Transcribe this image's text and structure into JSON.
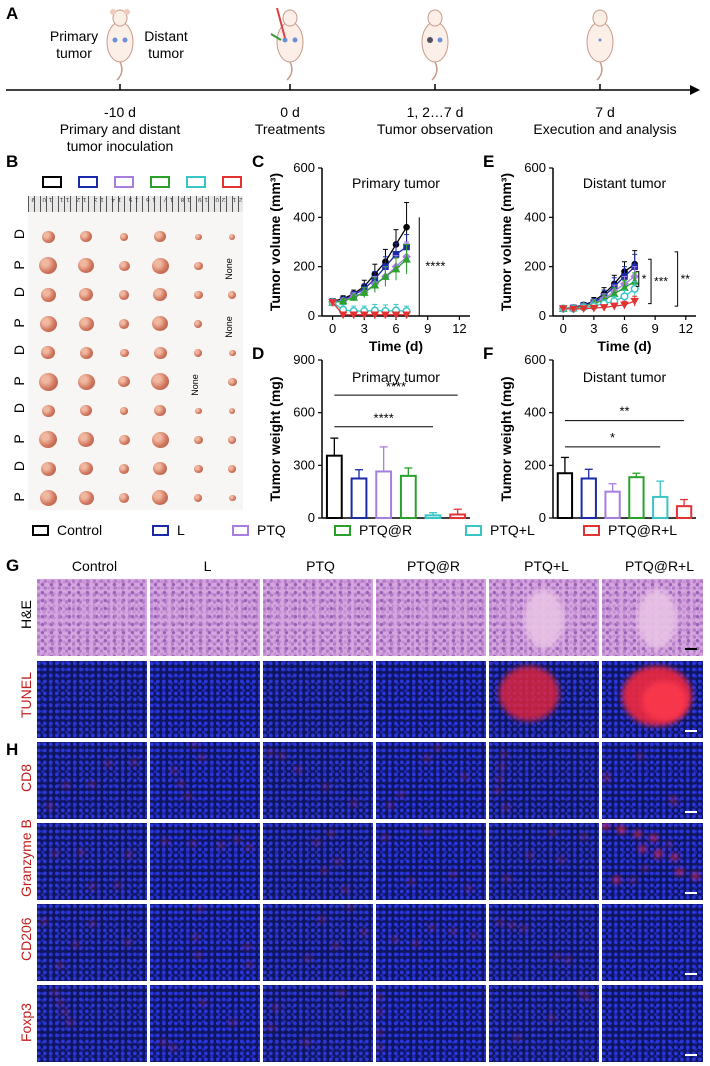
{
  "panels": {
    "A": "A",
    "B": "B",
    "C": "C",
    "D": "D",
    "E": "E",
    "F": "F",
    "G": "G",
    "H": "H"
  },
  "timeline": {
    "top_labels": {
      "primary": "Primary\ntumor",
      "distant": "Distant\ntumor"
    },
    "points": [
      {
        "day": "-10 d",
        "desc": "Primary and distant\ntumor inoculation"
      },
      {
        "day": "0 d",
        "desc": "Treatments"
      },
      {
        "day": "1, 2…7 d",
        "desc": "Tumor observation"
      },
      {
        "day": "7 d",
        "desc": "Execution and analysis"
      }
    ]
  },
  "photo": {
    "row_labels": [
      "D",
      "P",
      "D",
      "P",
      "D",
      "P",
      "D",
      "P",
      "D",
      "P"
    ],
    "none_label": "None",
    "ruler_numbers": "21 20 19 18 17 16 15 14 13 12 11 10 9",
    "box_colors": [
      "#000000",
      "#1a2aa8",
      "#a77ee0",
      "#2aa12a",
      "#39c5c5",
      "#e23232"
    ]
  },
  "groups": {
    "legend": [
      {
        "label": "Control",
        "color": "#000000"
      },
      {
        "label": "L",
        "color": "#1a2aa8"
      },
      {
        "label": "PTQ",
        "color": "#a77ee0"
      },
      {
        "label": "PTQ@R",
        "color": "#2aa12a"
      },
      {
        "label": "PTQ+L",
        "color": "#39c5c5"
      },
      {
        "label": "PTQ@R+L",
        "color": "#e23232"
      }
    ]
  },
  "chart_data": [
    {
      "id": "C",
      "type": "line",
      "title": "Primary tumor",
      "xlabel": "Time (d)",
      "ylabel": "Tumor volume (mm³)",
      "xlim": [
        -1,
        13
      ],
      "ylim": [
        0,
        600
      ],
      "xticks": [
        0,
        3,
        6,
        9,
        12
      ],
      "yticks": [
        0,
        200,
        400,
        600
      ],
      "x": [
        0,
        1,
        2,
        3,
        4,
        5,
        6,
        7
      ],
      "series": [
        {
          "name": "Control",
          "values": [
            60,
            70,
            90,
            120,
            170,
            220,
            290,
            360
          ],
          "err": [
            10,
            12,
            15,
            25,
            40,
            50,
            60,
            100
          ]
        },
        {
          "name": "L",
          "values": [
            58,
            65,
            85,
            110,
            150,
            200,
            250,
            280
          ],
          "err": [
            8,
            10,
            14,
            20,
            30,
            40,
            45,
            50
          ]
        },
        {
          "name": "PTQ",
          "values": [
            58,
            62,
            80,
            95,
            130,
            160,
            200,
            240
          ],
          "err": [
            8,
            10,
            14,
            20,
            30,
            40,
            45,
            60
          ]
        },
        {
          "name": "PTQ@R",
          "values": [
            55,
            60,
            75,
            95,
            125,
            160,
            190,
            230
          ],
          "err": [
            8,
            10,
            14,
            20,
            30,
            40,
            45,
            60
          ]
        },
        {
          "name": "PTQ+L",
          "values": [
            55,
            25,
            20,
            20,
            22,
            20,
            22,
            20
          ],
          "err": [
            8,
            20,
            20,
            20,
            25,
            25,
            25,
            20
          ]
        },
        {
          "name": "PTQ@R+L",
          "values": [
            55,
            5,
            5,
            5,
            5,
            5,
            5,
            5
          ],
          "err": [
            8,
            5,
            5,
            5,
            5,
            5,
            5,
            5
          ]
        }
      ],
      "annotation": "****"
    },
    {
      "id": "E",
      "type": "line",
      "title": "Distant tumor",
      "xlabel": "Time (d)",
      "ylabel": "Tumor volume (mm³)",
      "xlim": [
        -1,
        13
      ],
      "ylim": [
        0,
        600
      ],
      "xticks": [
        0,
        3,
        6,
        9,
        12
      ],
      "yticks": [
        0,
        200,
        400,
        600
      ],
      "x": [
        0,
        1,
        2,
        3,
        4,
        5,
        6,
        7
      ],
      "series": [
        {
          "name": "Control",
          "values": [
            30,
            35,
            45,
            60,
            90,
            130,
            180,
            210
          ],
          "err": [
            5,
            6,
            10,
            15,
            25,
            35,
            40,
            55
          ]
        },
        {
          "name": "L",
          "values": [
            30,
            33,
            42,
            55,
            80,
            120,
            160,
            200
          ],
          "err": [
            5,
            6,
            10,
            15,
            25,
            35,
            40,
            50
          ]
        },
        {
          "name": "PTQ",
          "values": [
            30,
            32,
            40,
            52,
            70,
            100,
            130,
            160
          ],
          "err": [
            5,
            6,
            10,
            15,
            20,
            25,
            30,
            40
          ]
        },
        {
          "name": "PTQ@R",
          "values": [
            30,
            32,
            40,
            50,
            65,
            90,
            115,
            140
          ],
          "err": [
            5,
            6,
            10,
            15,
            20,
            25,
            30,
            35
          ]
        },
        {
          "name": "PTQ+L",
          "values": [
            30,
            30,
            35,
            40,
            50,
            60,
            80,
            110
          ],
          "err": [
            5,
            6,
            8,
            10,
            15,
            20,
            25,
            30
          ]
        },
        {
          "name": "PTQ@R+L",
          "values": [
            30,
            28,
            30,
            32,
            35,
            40,
            45,
            60
          ],
          "err": [
            5,
            5,
            6,
            8,
            10,
            12,
            15,
            20
          ]
        }
      ],
      "annotations": [
        "*",
        "***",
        "**"
      ]
    },
    {
      "id": "D",
      "type": "bar",
      "title": "Primary tumor",
      "ylabel": "Tumor weight (mg)",
      "ylim": [
        0,
        900
      ],
      "yticks": [
        0,
        300,
        600,
        900
      ],
      "categories": [
        "Control",
        "L",
        "PTQ",
        "PTQ@R",
        "PTQ+L",
        "PTQ@R+L"
      ],
      "values": [
        355,
        225,
        265,
        240,
        15,
        20
      ],
      "err": [
        100,
        50,
        140,
        45,
        15,
        30
      ],
      "annotations": [
        "****",
        "****"
      ]
    },
    {
      "id": "F",
      "type": "bar",
      "title": "Distant tumor",
      "ylabel": "Tumor weight (mg)",
      "ylim": [
        0,
        600
      ],
      "yticks": [
        0,
        200,
        400,
        600
      ],
      "categories": [
        "Control",
        "L",
        "PTQ",
        "PTQ@R",
        "PTQ+L",
        "PTQ@R+L"
      ],
      "values": [
        170,
        150,
        100,
        155,
        80,
        45
      ],
      "err": [
        60,
        35,
        30,
        15,
        60,
        25
      ],
      "annotations": [
        "**",
        "*"
      ]
    }
  ],
  "histology": {
    "columns": [
      "Control",
      "L",
      "PTQ",
      "PTQ@R",
      "PTQ+L",
      "PTQ@R+L"
    ],
    "rows": [
      "H&E",
      "TUNEL",
      "CD8",
      "Granzyme B",
      "CD206",
      "Foxp3"
    ]
  }
}
